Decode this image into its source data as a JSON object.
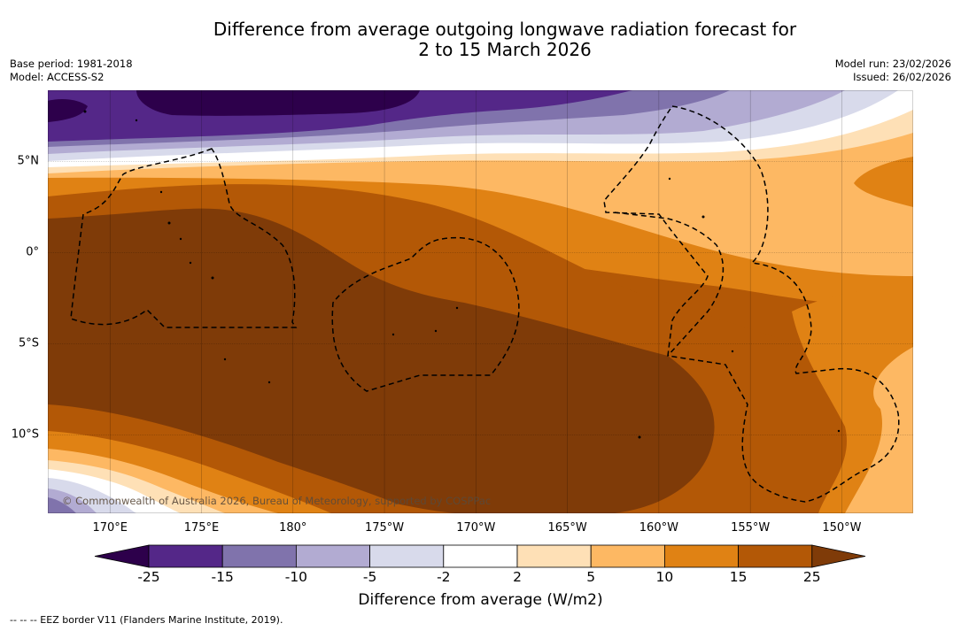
{
  "title_line1": "Difference from average outgoing longwave radiation forecast for",
  "title_line2": "2 to 15 March 2026",
  "left_meta": {
    "base_period": "Base period: 1981-2018",
    "model": "Model: ACCESS-S2"
  },
  "right_meta": {
    "model_run": "Model run: 23/02/2026",
    "issued": "Issued: 26/02/2026"
  },
  "map_extent": {
    "lon_min": 166.6,
    "lon_max": 213.9,
    "lat_min": -14.3,
    "lat_max": 8.9
  },
  "lon_ticks": [
    {
      "label": "170°E",
      "lon": 170
    },
    {
      "label": "175°E",
      "lon": 175
    },
    {
      "label": "180°",
      "lon": 180
    },
    {
      "label": "175°W",
      "lon": 185
    },
    {
      "label": "170°W",
      "lon": 190
    },
    {
      "label": "165°W",
      "lon": 195
    },
    {
      "label": "160°W",
      "lon": 200
    },
    {
      "label": "155°W",
      "lon": 205
    },
    {
      "label": "150°W",
      "lon": 210
    }
  ],
  "lat_ticks": [
    {
      "label": "5°N",
      "lat": 5
    },
    {
      "label": "0°",
      "lat": 0
    },
    {
      "label": "5°S",
      "lat": -5
    },
    {
      "label": "10°S",
      "lat": -10
    }
  ],
  "colorbar": {
    "levels": [
      -25,
      -15,
      -10,
      -5,
      -2,
      2,
      5,
      10,
      15,
      25
    ],
    "labels": [
      "-25",
      "-15",
      "-10",
      "-5",
      "-2",
      "2",
      "5",
      "10",
      "15",
      "25"
    ],
    "colors": [
      "#2d004b",
      "#542788",
      "#8073ac",
      "#b2abd2",
      "#d8daeb",
      "#ffffff",
      "#fee0b6",
      "#fdb863",
      "#e08214",
      "#b35806",
      "#7f3b08"
    ],
    "title": "Difference from average (W/m2)"
  },
  "copyright": "© Commonwealth of Australia 2026, Bureau of Meteorology, supported by COSPPac",
  "footnote": "--  --  -- EEZ border V11 (Flanders Marine Institute, 2019)."
}
